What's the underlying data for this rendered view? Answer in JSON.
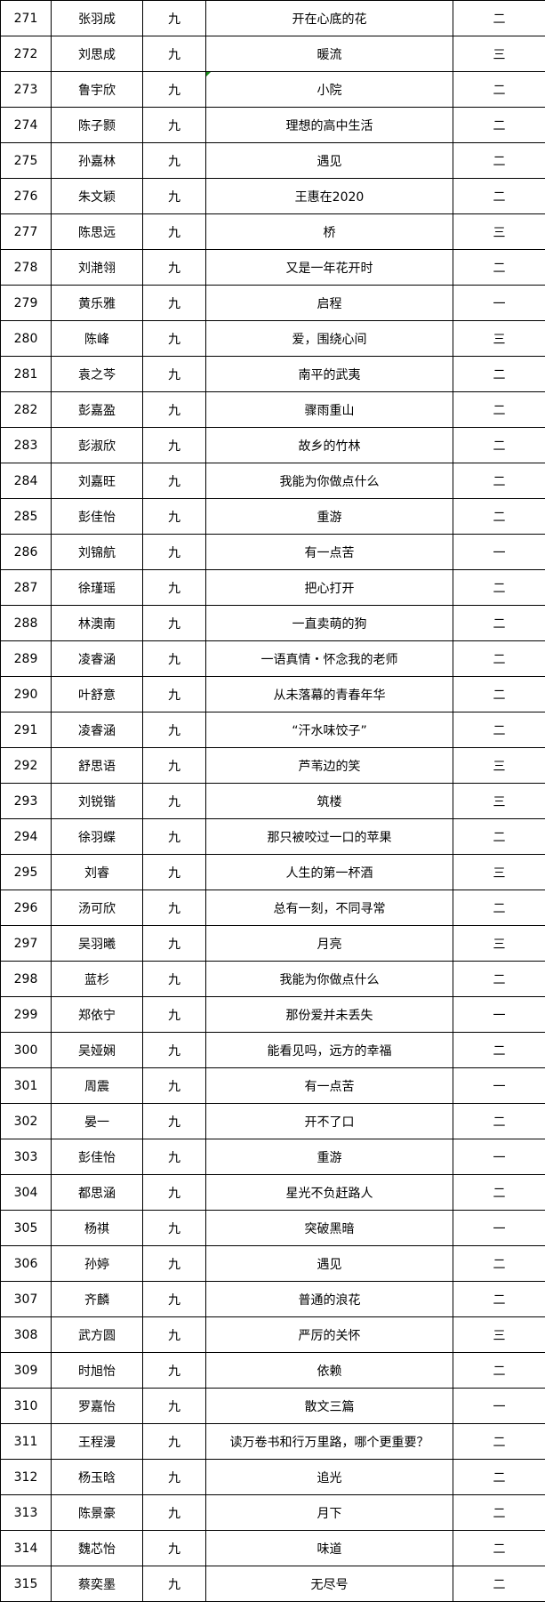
{
  "table": {
    "rows": [
      {
        "no": "271",
        "name": "张羽成",
        "grade": "九",
        "title": "开在心底的花",
        "award": "二"
      },
      {
        "no": "272",
        "name": "刘思成",
        "grade": "九",
        "title": "暖流",
        "award": "三"
      },
      {
        "no": "273",
        "name": "鲁宇欣",
        "grade": "九",
        "title": "小院",
        "award": "二",
        "comment_marker": true
      },
      {
        "no": "274",
        "name": "陈子颢",
        "grade": "九",
        "title": "理想的高中生活",
        "award": "二"
      },
      {
        "no": "275",
        "name": "孙嘉林",
        "grade": "九",
        "title": "遇见",
        "award": "二"
      },
      {
        "no": "276",
        "name": "朱文颖",
        "grade": "九",
        "title": "王惠在2020",
        "award": "二"
      },
      {
        "no": "277",
        "name": "陈思远",
        "grade": "九",
        "title": "桥",
        "award": "三"
      },
      {
        "no": "278",
        "name": "刘滟翎",
        "grade": "九",
        "title": "又是一年花开时",
        "award": "二"
      },
      {
        "no": "279",
        "name": "黄乐雅",
        "grade": "九",
        "title": "启程",
        "award": "一"
      },
      {
        "no": "280",
        "name": "陈峰",
        "grade": "九",
        "title": "爱，围绕心间",
        "award": "三"
      },
      {
        "no": "281",
        "name": "袁之芩",
        "grade": "九",
        "title": "南平的武夷",
        "award": "二"
      },
      {
        "no": "282",
        "name": "彭嘉盈",
        "grade": "九",
        "title": "骤雨重山",
        "award": "二"
      },
      {
        "no": "283",
        "name": "彭淑欣",
        "grade": "九",
        "title": "故乡的竹林",
        "award": "二"
      },
      {
        "no": "284",
        "name": "刘嘉旺",
        "grade": "九",
        "title": "我能为你做点什么",
        "award": "二"
      },
      {
        "no": "285",
        "name": "彭佳怡",
        "grade": "九",
        "title": "重游",
        "award": "二"
      },
      {
        "no": "286",
        "name": "刘锦航",
        "grade": "九",
        "title": "有一点苦",
        "award": "一"
      },
      {
        "no": "287",
        "name": "徐瑾瑶",
        "grade": "九",
        "title": "把心打开",
        "award": "二"
      },
      {
        "no": "288",
        "name": "林澳南",
        "grade": "九",
        "title": "一直卖萌的狗",
        "award": "二"
      },
      {
        "no": "289",
        "name": "凌睿涵",
        "grade": "九",
        "title": "一语真情・怀念我的老师",
        "award": "二"
      },
      {
        "no": "290",
        "name": "叶舒意",
        "grade": "九",
        "title": "从未落幕的青春年华",
        "award": "二"
      },
      {
        "no": "291",
        "name": "凌睿涵",
        "grade": "九",
        "title": "“汗水味饺子”",
        "award": "二"
      },
      {
        "no": "292",
        "name": "舒思语",
        "grade": "九",
        "title": "芦苇边的笑",
        "award": "三"
      },
      {
        "no": "293",
        "name": "刘锐锴",
        "grade": "九",
        "title": "筑楼",
        "award": "三"
      },
      {
        "no": "294",
        "name": "徐羽蝶",
        "grade": "九",
        "title": "那只被咬过一口的苹果",
        "award": "二"
      },
      {
        "no": "295",
        "name": "刘睿",
        "grade": "九",
        "title": "人生的第一杯酒",
        "award": "三"
      },
      {
        "no": "296",
        "name": "汤可欣",
        "grade": "九",
        "title": "总有一刻，不同寻常",
        "award": "二"
      },
      {
        "no": "297",
        "name": "吴羽曦",
        "grade": "九",
        "title": "月亮",
        "award": "三"
      },
      {
        "no": "298",
        "name": "蓝杉",
        "grade": "九",
        "title": "我能为你做点什么",
        "award": "二"
      },
      {
        "no": "299",
        "name": "郑依宁",
        "grade": "九",
        "title": "那份爱并未丢失",
        "award": "一"
      },
      {
        "no": "300",
        "name": "吴娅娴",
        "grade": "九",
        "title": "能看见吗，远方的幸福",
        "award": "二"
      },
      {
        "no": "301",
        "name": "周震",
        "grade": "九",
        "title": "有一点苦",
        "award": "一"
      },
      {
        "no": "302",
        "name": "晏一",
        "grade": "九",
        "title": "开不了口",
        "award": "二"
      },
      {
        "no": "303",
        "name": "彭佳怡",
        "grade": "九",
        "title": "重游",
        "award": "一"
      },
      {
        "no": "304",
        "name": "都思涵",
        "grade": "九",
        "title": "星光不负赶路人",
        "award": "二"
      },
      {
        "no": "305",
        "name": "杨祺",
        "grade": "九",
        "title": "突破黑暗",
        "award": "一"
      },
      {
        "no": "306",
        "name": "孙婷",
        "grade": "九",
        "title": "遇见",
        "award": "二"
      },
      {
        "no": "307",
        "name": "齐麟",
        "grade": "九",
        "title": "普通的浪花",
        "award": "二"
      },
      {
        "no": "308",
        "name": "武方圆",
        "grade": "九",
        "title": "严厉的关怀",
        "award": "三"
      },
      {
        "no": "309",
        "name": "时旭怡",
        "grade": "九",
        "title": "依赖",
        "award": "二"
      },
      {
        "no": "310",
        "name": "罗嘉怡",
        "grade": "九",
        "title": "散文三篇",
        "award": "一"
      },
      {
        "no": "311",
        "name": "王程漫",
        "grade": "九",
        "title": "读万卷书和行万里路，哪个更重要？",
        "award": "二"
      },
      {
        "no": "312",
        "name": "杨玉晗",
        "grade": "九",
        "title": "追光",
        "award": "二"
      },
      {
        "no": "313",
        "name": "陈景豪",
        "grade": "九",
        "title": "月下",
        "award": "二"
      },
      {
        "no": "314",
        "name": "魏芯怡",
        "grade": "九",
        "title": "味道",
        "award": "二"
      },
      {
        "no": "315",
        "name": "蔡奕墨",
        "grade": "九",
        "title": "无尽号",
        "award": "二"
      }
    ]
  },
  "colors": {
    "border": "#000000",
    "comment_marker": "#1a8f1a"
  }
}
